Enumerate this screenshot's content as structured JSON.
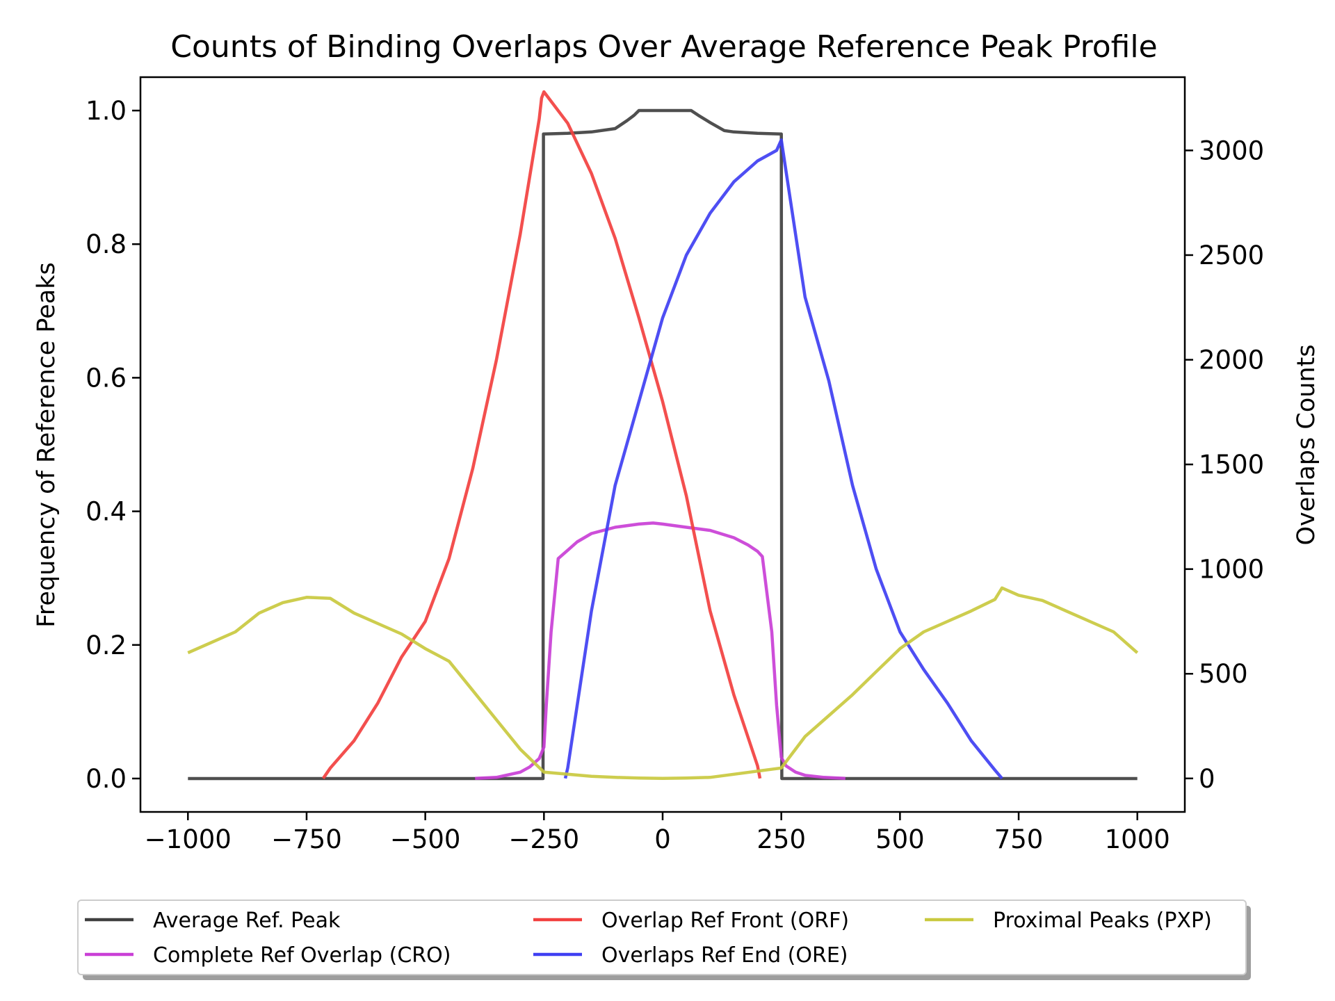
{
  "chart_data": {
    "type": "line",
    "title": "Counts of Binding Overlaps Over Average Reference Peak Profile",
    "xlabel": "",
    "ylabel_left": "Frequency of Reference Peaks",
    "ylabel_right": "Overlaps Counts",
    "xlim": [
      -1100,
      1100
    ],
    "ylim_left": [
      -0.05,
      1.05
    ],
    "ylim_right": [
      -160,
      3350
    ],
    "x_ticks": [
      -1000,
      -750,
      -500,
      -250,
      0,
      250,
      500,
      750,
      1000
    ],
    "y_left_ticks": [
      0.0,
      0.2,
      0.4,
      0.6,
      0.8,
      1.0
    ],
    "y_right_ticks": [
      0,
      500,
      1000,
      1500,
      2000,
      2500,
      3000
    ],
    "legend": {
      "placement": "bottom-outside",
      "columns": 3
    },
    "grid": false,
    "series": [
      {
        "name": "Average Ref. Peak",
        "axis": "left",
        "color": "#404040",
        "x": [
          -1000,
          -252,
          -251,
          -250,
          -200,
          -150,
          -100,
          -75,
          -60,
          -50,
          0,
          50,
          60,
          75,
          100,
          130,
          150,
          200,
          248,
          250,
          251,
          252,
          1000
        ],
        "y": [
          0.0,
          0.0,
          0.965,
          0.965,
          0.966,
          0.968,
          0.973,
          0.985,
          0.993,
          1.0,
          1.0,
          1.0,
          1.0,
          0.993,
          0.982,
          0.97,
          0.968,
          0.966,
          0.965,
          0.965,
          0.0,
          0.0,
          0.0
        ]
      },
      {
        "name": "Complete Ref Overlap (CRO)",
        "axis": "right",
        "color": "#c93fd6",
        "x": [
          -395,
          -350,
          -300,
          -280,
          -260,
          -250,
          -245,
          -235,
          -220,
          -210,
          -200,
          -180,
          -150,
          -100,
          -50,
          -20,
          0,
          50,
          100,
          150,
          180,
          200,
          210,
          230,
          240,
          250,
          260,
          280,
          300,
          340,
          385
        ],
        "y": [
          0,
          5,
          30,
          55,
          95,
          150,
          350,
          700,
          1050,
          1070,
          1090,
          1130,
          1170,
          1200,
          1215,
          1220,
          1215,
          1200,
          1185,
          1150,
          1115,
          1085,
          1060,
          700,
          350,
          100,
          60,
          30,
          15,
          5,
          0
        ]
      },
      {
        "name": "Overlap Ref Front (ORF)",
        "axis": "right",
        "color": "#f2403f",
        "x": [
          -715,
          -700,
          -650,
          -600,
          -550,
          -500,
          -450,
          -400,
          -350,
          -300,
          -260,
          -255,
          -250,
          -200,
          -150,
          -100,
          -50,
          0,
          50,
          100,
          150,
          200,
          205
        ],
        "y": [
          0,
          50,
          180,
          360,
          580,
          750,
          1050,
          1480,
          2000,
          2600,
          3150,
          3250,
          3280,
          3130,
          2890,
          2580,
          2200,
          1800,
          1350,
          800,
          400,
          60,
          0
        ]
      },
      {
        "name": "Overlaps Ref End (ORE)",
        "axis": "right",
        "color": "#3f3ff2",
        "x": [
          -205,
          -200,
          -150,
          -100,
          -50,
          0,
          50,
          100,
          150,
          200,
          240,
          250,
          260,
          300,
          350,
          400,
          450,
          500,
          550,
          600,
          650,
          700,
          715
        ],
        "y": [
          0,
          50,
          800,
          1400,
          1800,
          2200,
          2500,
          2700,
          2850,
          2950,
          3000,
          3050,
          2900,
          2300,
          1900,
          1400,
          1000,
          700,
          520,
          360,
          180,
          40,
          0
        ]
      },
      {
        "name": "Proximal Peaks (PXP)",
        "axis": "right",
        "color": "#c9c93f",
        "x": [
          -1000,
          -950,
          -900,
          -850,
          -800,
          -750,
          -700,
          -650,
          -600,
          -550,
          -500,
          -450,
          -400,
          -350,
          -300,
          -250,
          -200,
          -150,
          -100,
          -50,
          0,
          50,
          100,
          150,
          200,
          250,
          300,
          350,
          400,
          450,
          500,
          550,
          600,
          650,
          700,
          715,
          750,
          800,
          850,
          900,
          950,
          1000
        ],
        "y": [
          600,
          650,
          700,
          790,
          840,
          865,
          860,
          790,
          740,
          690,
          620,
          560,
          420,
          280,
          140,
          30,
          20,
          10,
          5,
          2,
          0,
          2,
          5,
          20,
          35,
          50,
          200,
          300,
          400,
          510,
          620,
          700,
          750,
          800,
          855,
          910,
          875,
          850,
          800,
          750,
          700,
          600
        ]
      }
    ]
  }
}
